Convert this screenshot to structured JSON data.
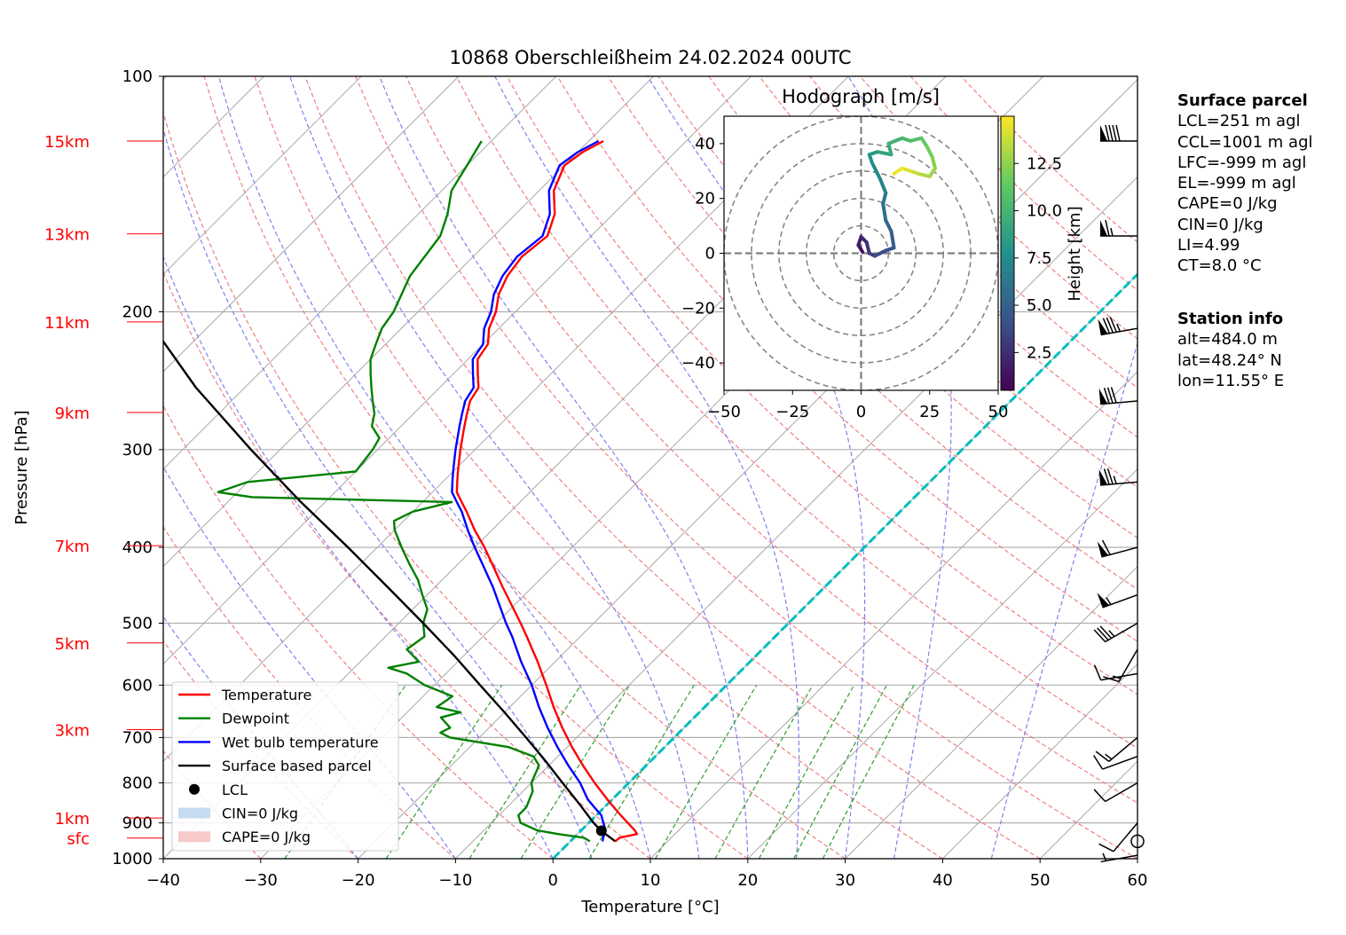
{
  "chart_data": {
    "type": "skew-t",
    "title": "10868 Oberschleißheim 24.02.2024 00UTC",
    "xlabel": "Temperature [°C]",
    "ylabel": "Pressure [hPa]",
    "xlim": [
      -40,
      60
    ],
    "ylim_hpa": [
      1000,
      100
    ],
    "x_ticks": [
      "−40",
      "−30",
      "−20",
      "−10",
      "0",
      "10",
      "20",
      "30",
      "40",
      "50",
      "60"
    ],
    "y_ticks": [
      {
        "p": 100,
        "label": "100"
      },
      {
        "p": 200,
        "label": "200"
      },
      {
        "p": 300,
        "label": "300"
      },
      {
        "p": 400,
        "label": "400"
      },
      {
        "p": 500,
        "label": "500"
      },
      {
        "p": 600,
        "label": "600"
      },
      {
        "p": 700,
        "label": "700"
      },
      {
        "p": 800,
        "label": "800"
      },
      {
        "p": 900,
        "label": "900"
      },
      {
        "p": 1000,
        "label": "1000"
      }
    ],
    "height_labels": [
      {
        "p": 121,
        "label": "15km"
      },
      {
        "p": 159,
        "label": "13km"
      },
      {
        "p": 206,
        "label": "11km"
      },
      {
        "p": 269,
        "label": "9km"
      },
      {
        "p": 398,
        "label": "7km"
      },
      {
        "p": 530,
        "label": "5km"
      },
      {
        "p": 684,
        "label": "3km"
      },
      {
        "p": 887,
        "label": "1km"
      },
      {
        "p": 941,
        "label": "sfc"
      }
    ],
    "colors": {
      "temperature": "#ff0000",
      "dewpoint": "#008000",
      "wetbulb": "#0000ff",
      "parcel": "#000000",
      "isotherm_zero": "#00bfbf",
      "height_labels": "#ff0000",
      "dry_adiabat": "#f08080",
      "moist_adiabat": "#8080f0",
      "mixing_ratio": "#2ca02c"
    },
    "series": [
      {
        "name": "Temperature",
        "key": "temperature",
        "points": [
          [
            950,
            4.6
          ],
          [
            940,
            4.7
          ],
          [
            930,
            6.1
          ],
          [
            920,
            5.5
          ],
          [
            900,
            4.0
          ],
          [
            880,
            2.5
          ],
          [
            860,
            1.0
          ],
          [
            840,
            -0.5
          ],
          [
            800,
            -3.5
          ],
          [
            760,
            -6.5
          ],
          [
            720,
            -9.5
          ],
          [
            680,
            -12.5
          ],
          [
            640,
            -15.5
          ],
          [
            600,
            -18.5
          ],
          [
            560,
            -21.8
          ],
          [
            520,
            -25.5
          ],
          [
            500,
            -27.5
          ],
          [
            450,
            -33.0
          ],
          [
            420,
            -36.5
          ],
          [
            400,
            -39.0
          ],
          [
            380,
            -41.8
          ],
          [
            360,
            -44.5
          ],
          [
            350,
            -46.0
          ],
          [
            340,
            -47.5
          ],
          [
            330,
            -48.5
          ],
          [
            320,
            -49.5
          ],
          [
            300,
            -51.5
          ],
          [
            280,
            -53.5
          ],
          [
            270,
            -54.5
          ],
          [
            260,
            -55.5
          ],
          [
            250,
            -56.0
          ],
          [
            240,
            -57.5
          ],
          [
            230,
            -59.0
          ],
          [
            220,
            -59.5
          ],
          [
            210,
            -61.0
          ],
          [
            200,
            -62.0
          ],
          [
            190,
            -63.5
          ],
          [
            180,
            -64.5
          ],
          [
            170,
            -65.0
          ],
          [
            160,
            -64.5
          ],
          [
            150,
            -66.0
          ],
          [
            140,
            -68.5
          ],
          [
            130,
            -70.0
          ],
          [
            125,
            -69.5
          ],
          [
            121,
            -68.5
          ]
        ]
      },
      {
        "name": "Dewpoint",
        "key": "dewpoint",
        "points": [
          [
            950,
            2.0
          ],
          [
            940,
            1.0
          ],
          [
            930,
            -2.0
          ],
          [
            920,
            -4.5
          ],
          [
            900,
            -7.0
          ],
          [
            880,
            -8.0
          ],
          [
            860,
            -8.0
          ],
          [
            840,
            -8.5
          ],
          [
            820,
            -9.0
          ],
          [
            800,
            -10.0
          ],
          [
            780,
            -10.5
          ],
          [
            760,
            -11.0
          ],
          [
            740,
            -12.5
          ],
          [
            720,
            -16.0
          ],
          [
            700,
            -23.0
          ],
          [
            690,
            -24.5
          ],
          [
            680,
            -24.0
          ],
          [
            660,
            -26.0
          ],
          [
            650,
            -24.5
          ],
          [
            640,
            -27.5
          ],
          [
            620,
            -27.0
          ],
          [
            600,
            -31.0
          ],
          [
            580,
            -34.0
          ],
          [
            570,
            -36.5
          ],
          [
            560,
            -34.0
          ],
          [
            540,
            -36.5
          ],
          [
            520,
            -36.0
          ],
          [
            500,
            -37.5
          ],
          [
            480,
            -38.5
          ],
          [
            460,
            -40.5
          ],
          [
            440,
            -42.5
          ],
          [
            420,
            -45.0
          ],
          [
            400,
            -47.5
          ],
          [
            380,
            -50.0
          ],
          [
            370,
            -51.0
          ],
          [
            360,
            -50.0
          ],
          [
            350,
            -47.0
          ],
          [
            345,
            -68.0
          ],
          [
            340,
            -72.0
          ],
          [
            330,
            -70.0
          ],
          [
            320,
            -60.0
          ],
          [
            300,
            -60.5
          ],
          [
            290,
            -61.0
          ],
          [
            280,
            -63.0
          ],
          [
            270,
            -64.0
          ],
          [
            260,
            -65.5
          ],
          [
            250,
            -67.0
          ],
          [
            240,
            -68.5
          ],
          [
            230,
            -70.0
          ],
          [
            220,
            -71.0
          ],
          [
            210,
            -72.0
          ],
          [
            200,
            -72.5
          ],
          [
            180,
            -74.5
          ],
          [
            160,
            -75.5
          ],
          [
            150,
            -77.0
          ],
          [
            140,
            -79.0
          ],
          [
            130,
            -80.0
          ],
          [
            121,
            -81.0
          ]
        ]
      },
      {
        "name": "Wet bulb temperature",
        "key": "wetbulb",
        "points": [
          [
            950,
            3.3
          ],
          [
            940,
            3.0
          ],
          [
            920,
            2.5
          ],
          [
            900,
            1.5
          ],
          [
            880,
            0.5
          ],
          [
            860,
            -1.0
          ],
          [
            840,
            -2.5
          ],
          [
            800,
            -5.0
          ],
          [
            760,
            -8.0
          ],
          [
            720,
            -11.0
          ],
          [
            680,
            -14.0
          ],
          [
            640,
            -17.0
          ],
          [
            600,
            -20.0
          ],
          [
            560,
            -23.5
          ],
          [
            520,
            -27.0
          ],
          [
            500,
            -29.0
          ],
          [
            450,
            -34.0
          ],
          [
            420,
            -37.5
          ],
          [
            400,
            -40.0
          ],
          [
            380,
            -42.5
          ],
          [
            360,
            -45.0
          ],
          [
            350,
            -46.5
          ],
          [
            340,
            -48.0
          ],
          [
            330,
            -49.0
          ],
          [
            320,
            -50.0
          ],
          [
            300,
            -52.0
          ],
          [
            280,
            -54.0
          ],
          [
            270,
            -55.0
          ],
          [
            260,
            -56.0
          ],
          [
            250,
            -56.5
          ],
          [
            240,
            -58.0
          ],
          [
            230,
            -59.5
          ],
          [
            220,
            -60.0
          ],
          [
            210,
            -61.5
          ],
          [
            200,
            -62.5
          ],
          [
            190,
            -64.0
          ],
          [
            180,
            -65.0
          ],
          [
            170,
            -65.5
          ],
          [
            160,
            -65.0
          ],
          [
            150,
            -66.5
          ],
          [
            140,
            -69.0
          ],
          [
            130,
            -70.5
          ],
          [
            125,
            -70.0
          ],
          [
            121,
            -69.0
          ]
        ]
      },
      {
        "name": "Surface based parcel",
        "key": "parcel",
        "points": [
          [
            950,
            4.6
          ],
          [
            920,
            2.0
          ],
          [
            900,
            0.5
          ],
          [
            850,
            -3.0
          ],
          [
            800,
            -6.8
          ],
          [
            750,
            -10.8
          ],
          [
            700,
            -15.2
          ],
          [
            650,
            -20.0
          ],
          [
            600,
            -25.3
          ],
          [
            550,
            -31.0
          ],
          [
            500,
            -37.5
          ],
          [
            450,
            -44.8
          ],
          [
            400,
            -53.0
          ],
          [
            350,
            -62.5
          ],
          [
            300,
            -73.0
          ],
          [
            250,
            -85.0
          ],
          [
            215,
            -94.0
          ]
        ]
      }
    ],
    "lcl": {
      "p": 921,
      "t": 2.1,
      "label": "LCL"
    },
    "legend": {
      "placement": "lower-left",
      "entries": [
        {
          "label": "Temperature",
          "style": "line",
          "color": "#ff0000"
        },
        {
          "label": "Dewpoint",
          "style": "line",
          "color": "#008000"
        },
        {
          "label": "Wet bulb temperature",
          "style": "line",
          "color": "#0000ff"
        },
        {
          "label": "Surface based parcel",
          "style": "line",
          "color": "#000000"
        },
        {
          "label": "LCL",
          "style": "dot",
          "color": "#000000"
        },
        {
          "label": "CIN=0 J/kg",
          "style": "patch",
          "color": "#c6dbef"
        },
        {
          "label": "CAPE=0 J/kg",
          "style": "patch",
          "color": "#f7c9c9"
        }
      ]
    },
    "wind_barbs": [
      {
        "p": 121,
        "dir": 270,
        "speed_kt": 90
      },
      {
        "p": 160,
        "dir": 270,
        "speed_kt": 65
      },
      {
        "p": 210,
        "dir": 260,
        "speed_kt": 85
      },
      {
        "p": 260,
        "dir": 265,
        "speed_kt": 80
      },
      {
        "p": 330,
        "dir": 265,
        "speed_kt": 75
      },
      {
        "p": 400,
        "dir": 255,
        "speed_kt": 60
      },
      {
        "p": 460,
        "dir": 250,
        "speed_kt": 55
      },
      {
        "p": 500,
        "dir": 240,
        "speed_kt": 35
      },
      {
        "p": 540,
        "dir": 210,
        "speed_kt": 15
      },
      {
        "p": 580,
        "dir": 260,
        "speed_kt": 10
      },
      {
        "p": 700,
        "dir": 230,
        "speed_kt": 15
      },
      {
        "p": 740,
        "dir": 250,
        "speed_kt": 10
      },
      {
        "p": 800,
        "dir": 240,
        "speed_kt": 10
      },
      {
        "p": 900,
        "dir": 220,
        "speed_kt": 10
      },
      {
        "p": 950,
        "dir": 0,
        "speed_kt": 0
      },
      {
        "p": 990,
        "dir": 260,
        "speed_kt": 5
      }
    ],
    "hodograph": {
      "title": "Hodograph [m/s]",
      "xlim": [
        -50,
        50
      ],
      "ylim": [
        -50,
        50
      ],
      "x_ticks": [
        "−50",
        "−25",
        "0",
        "25",
        "50"
      ],
      "y_ticks": [
        "−40",
        "−20",
        "0",
        "20",
        "40"
      ],
      "rings": [
        10,
        20,
        30,
        40,
        50
      ],
      "colorbar": {
        "label": "Height [km]",
        "ticks": [
          "2.5",
          "5.0",
          "7.5",
          "10.0",
          "12.5"
        ],
        "range": [
          0.5,
          15
        ],
        "colormap": "viridis"
      },
      "points": [
        [
          0.5,
          0.5,
          1
        ],
        [
          -1,
          3,
          1.5
        ],
        [
          0,
          6,
          2
        ],
        [
          2,
          4,
          2.5
        ],
        [
          3,
          0,
          3
        ],
        [
          5,
          -1,
          3.5
        ],
        [
          9,
          1,
          4
        ],
        [
          12,
          2,
          4.5
        ],
        [
          11,
          8,
          5
        ],
        [
          9,
          12,
          5.5
        ],
        [
          8,
          18,
          6
        ],
        [
          9,
          22,
          6.5
        ],
        [
          7,
          27,
          7
        ],
        [
          4,
          33,
          7.5
        ],
        [
          3,
          36,
          8
        ],
        [
          6,
          37,
          8.5
        ],
        [
          11,
          36,
          9
        ],
        [
          10,
          40,
          9.5
        ],
        [
          15,
          42,
          10
        ],
        [
          18,
          41,
          10.5
        ],
        [
          22,
          42,
          11
        ],
        [
          24,
          39,
          11.5
        ],
        [
          26,
          35,
          12
        ],
        [
          27,
          31,
          12.5
        ],
        [
          25,
          28,
          13
        ],
        [
          21,
          29,
          13.5
        ],
        [
          18,
          30,
          14
        ],
        [
          15,
          31,
          14.5
        ],
        [
          12,
          29,
          15
        ]
      ]
    }
  },
  "surface_parcel": {
    "header": "Surface parcel",
    "lines": [
      "LCL=251 m agl",
      "CCL=1001 m agl",
      "LFC=-999 m agl",
      "EL=-999 m agl",
      "CAPE=0 J/kg",
      "CIN=0 J/kg",
      "LI=4.99",
      "CT=8.0 °C"
    ]
  },
  "station_info": {
    "header": "Station info",
    "lines": [
      "alt=484.0 m",
      "lat=48.24° N",
      "lon=11.55° E"
    ]
  }
}
